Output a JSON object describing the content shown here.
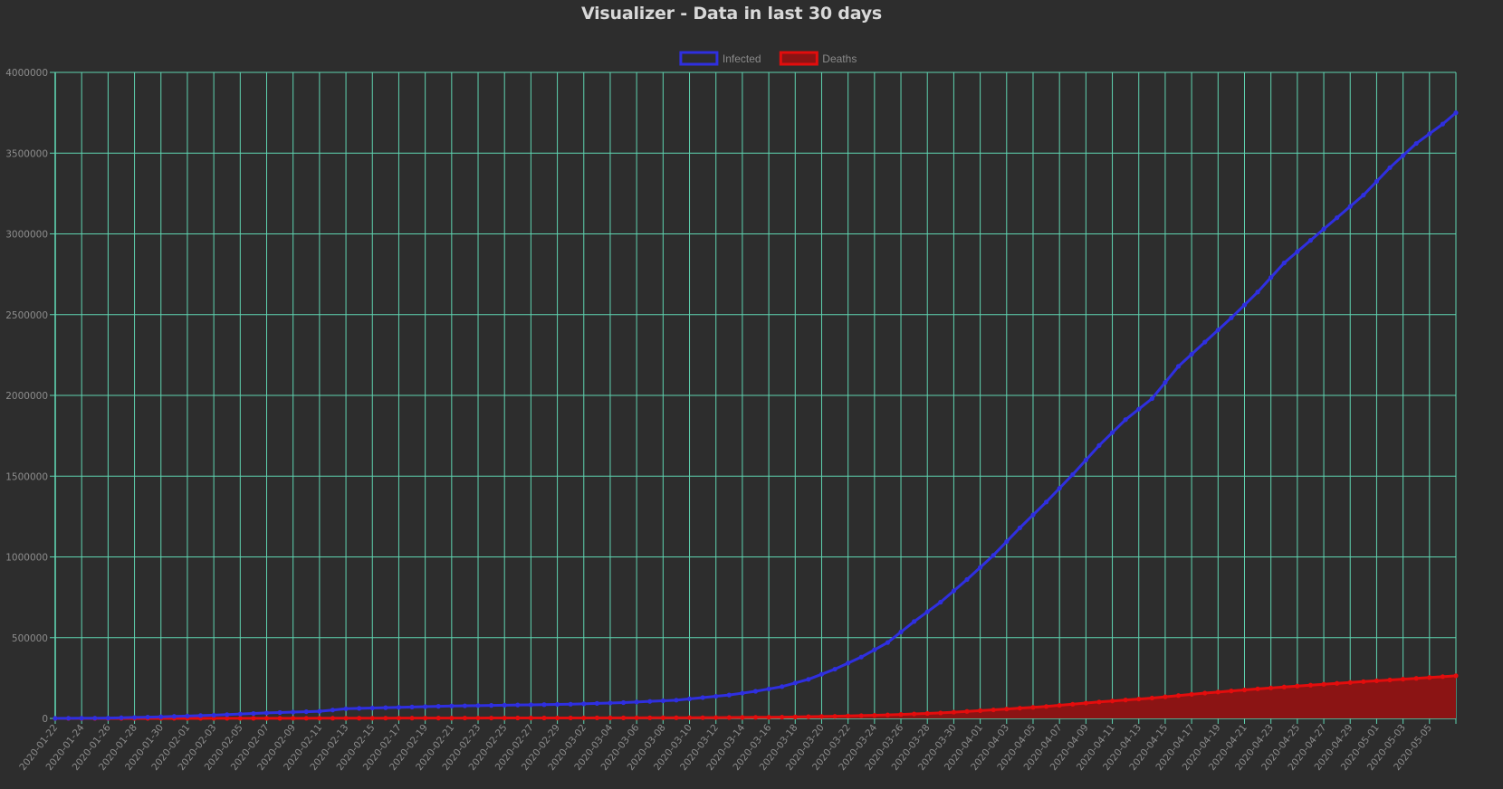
{
  "page": {
    "title": "Visualizer - Data in last 30 days"
  },
  "colors": {
    "background": "#2d2d2d",
    "grid": "#5fd3b0",
    "infected": "#2f2fe0",
    "deaths": "#e30d0d",
    "deaths_fill": "#8b1414",
    "tick_text": "#8c8c8c"
  },
  "chart_data": {
    "type": "line",
    "title": "Visualizer - Data in last 30 days",
    "xlabel": "",
    "ylabel": "",
    "ylim": [
      0,
      4000000
    ],
    "yticks": [
      0,
      500000,
      1000000,
      1500000,
      2000000,
      2500000,
      3000000,
      3500000,
      4000000
    ],
    "ytick_labels": [
      "0",
      "500000",
      "1000000",
      "1500000",
      "2000000",
      "2500000",
      "3000000",
      "3500000",
      "4000000"
    ],
    "x_start": "2020-01-22",
    "x_end": "2020-05-07",
    "x_tick_labels": [
      "2020-01-22",
      "2020-01-24",
      "2020-01-26",
      "2020-01-28",
      "2020-01-30",
      "2020-02-01",
      "2020-02-03",
      "2020-02-05",
      "2020-02-07",
      "2020-02-09",
      "2020-02-11",
      "2020-02-13",
      "2020-02-15",
      "2020-02-17",
      "2020-02-19",
      "2020-02-21",
      "2020-02-23",
      "2020-02-25",
      "2020-02-27",
      "2020-02-29",
      "2020-03-02",
      "2020-03-04",
      "2020-03-06",
      "2020-03-08",
      "2020-03-10",
      "2020-03-12",
      "2020-03-14",
      "2020-03-16",
      "2020-03-18",
      "2020-03-20",
      "2020-03-22",
      "2020-03-24",
      "2020-03-26",
      "2020-03-28",
      "2020-03-30",
      "2020-04-01",
      "2020-04-03",
      "2020-04-05",
      "2020-04-07",
      "2020-04-09",
      "2020-04-11",
      "2020-04-13",
      "2020-04-15",
      "2020-04-17",
      "2020-04-19",
      "2020-04-21",
      "2020-04-23",
      "2020-04-25",
      "2020-04-27",
      "2020-04-29",
      "2020-05-01",
      "2020-05-03",
      "2020-05-05"
    ],
    "grid": true,
    "legend_position": "top-center",
    "series": [
      {
        "name": "Infected",
        "color": "#2f2fe0",
        "fill": false,
        "keypoints": [
          [
            "2020-01-22",
            600
          ],
          [
            "2020-01-26",
            2100
          ],
          [
            "2020-01-30",
            9900
          ],
          [
            "2020-02-03",
            20000
          ],
          [
            "2020-02-07",
            34000
          ],
          [
            "2020-02-11",
            44000
          ],
          [
            "2020-02-13",
            60000
          ],
          [
            "2020-02-21",
            77000
          ],
          [
            "2020-03-01",
            88000
          ],
          [
            "2020-03-05",
            98000
          ],
          [
            "2020-03-09",
            113000
          ],
          [
            "2020-03-13",
            145000
          ],
          [
            "2020-03-15",
            168000
          ],
          [
            "2020-03-17",
            197000
          ],
          [
            "2020-03-19",
            242000
          ],
          [
            "2020-03-21",
            305000
          ],
          [
            "2020-03-23",
            380000
          ],
          [
            "2020-03-25",
            470000
          ],
          [
            "2020-03-27",
            600000
          ],
          [
            "2020-03-29",
            720000
          ],
          [
            "2020-03-31",
            860000
          ],
          [
            "2020-04-02",
            1010000
          ],
          [
            "2020-04-04",
            1180000
          ],
          [
            "2020-04-06",
            1340000
          ],
          [
            "2020-04-08",
            1510000
          ],
          [
            "2020-04-10",
            1690000
          ],
          [
            "2020-04-12",
            1850000
          ],
          [
            "2020-04-14",
            1980000
          ],
          [
            "2020-04-16",
            2180000
          ],
          [
            "2020-04-18",
            2330000
          ],
          [
            "2020-04-20",
            2480000
          ],
          [
            "2020-04-22",
            2640000
          ],
          [
            "2020-04-24",
            2820000
          ],
          [
            "2020-04-26",
            2960000
          ],
          [
            "2020-04-28",
            3100000
          ],
          [
            "2020-04-30",
            3240000
          ],
          [
            "2020-05-02",
            3410000
          ],
          [
            "2020-05-04",
            3560000
          ],
          [
            "2020-05-06",
            3680000
          ],
          [
            "2020-05-07",
            3750000
          ]
        ]
      },
      {
        "name": "Deaths",
        "color": "#e30d0d",
        "fill": true,
        "keypoints": [
          [
            "2020-01-22",
            17
          ],
          [
            "2020-02-01",
            260
          ],
          [
            "2020-02-11",
            1100
          ],
          [
            "2020-02-21",
            2250
          ],
          [
            "2020-03-01",
            3000
          ],
          [
            "2020-03-11",
            4600
          ],
          [
            "2020-03-17",
            7900
          ],
          [
            "2020-03-21",
            13000
          ],
          [
            "2020-03-25",
            21500
          ],
          [
            "2020-03-29",
            34000
          ],
          [
            "2020-04-02",
            53000
          ],
          [
            "2020-04-06",
            74000
          ],
          [
            "2020-04-10",
            102000
          ],
          [
            "2020-04-14",
            126000
          ],
          [
            "2020-04-18",
            157000
          ],
          [
            "2020-04-22",
            183000
          ],
          [
            "2020-04-26",
            206000
          ],
          [
            "2020-04-30",
            228000
          ],
          [
            "2020-05-04",
            248000
          ],
          [
            "2020-05-07",
            264000
          ]
        ]
      }
    ]
  }
}
